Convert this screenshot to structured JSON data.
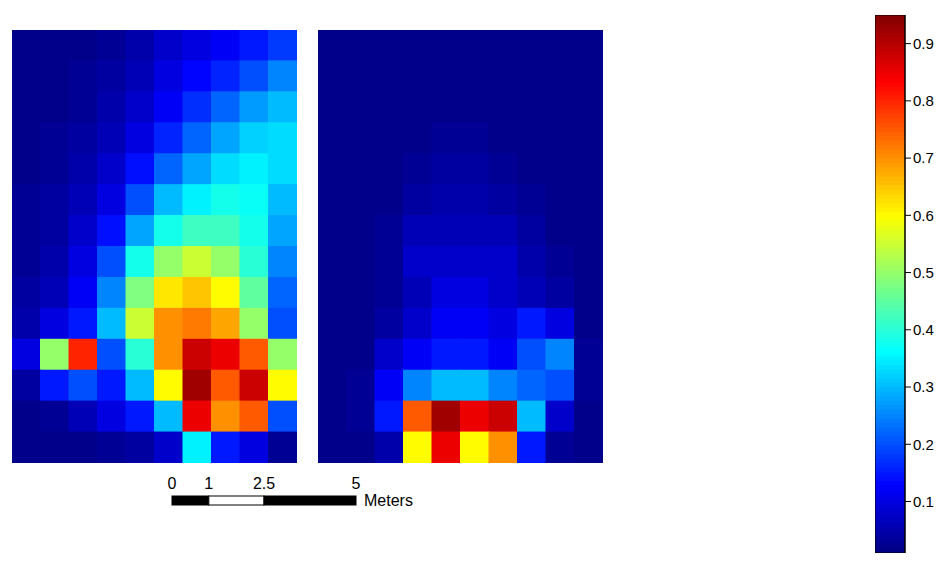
{
  "chart_data": {
    "type": "heatmap",
    "tick_labels": false,
    "panels": [
      {
        "cells": [
          [
            0.02,
            0.02,
            0.02,
            0.03,
            0.05,
            0.08,
            0.1,
            0.12,
            0.15,
            0.18
          ],
          [
            0.02,
            0.02,
            0.03,
            0.04,
            0.06,
            0.1,
            0.13,
            0.16,
            0.2,
            0.25
          ],
          [
            0.02,
            0.02,
            0.03,
            0.05,
            0.08,
            0.12,
            0.17,
            0.22,
            0.27,
            0.3
          ],
          [
            0.02,
            0.03,
            0.04,
            0.06,
            0.1,
            0.16,
            0.22,
            0.28,
            0.32,
            0.33
          ],
          [
            0.02,
            0.03,
            0.05,
            0.08,
            0.14,
            0.22,
            0.28,
            0.33,
            0.35,
            0.33
          ],
          [
            0.03,
            0.04,
            0.06,
            0.1,
            0.2,
            0.3,
            0.35,
            0.38,
            0.37,
            0.3
          ],
          [
            0.03,
            0.04,
            0.08,
            0.14,
            0.28,
            0.38,
            0.42,
            0.42,
            0.38,
            0.28
          ],
          [
            0.03,
            0.05,
            0.1,
            0.2,
            0.38,
            0.5,
            0.55,
            0.5,
            0.4,
            0.25
          ],
          [
            0.04,
            0.06,
            0.12,
            0.25,
            0.48,
            0.62,
            0.65,
            0.6,
            0.45,
            0.22
          ],
          [
            0.05,
            0.1,
            0.15,
            0.3,
            0.55,
            0.7,
            0.72,
            0.68,
            0.5,
            0.2
          ],
          [
            0.1,
            0.5,
            0.8,
            0.2,
            0.4,
            0.7,
            0.88,
            0.85,
            0.75,
            0.5
          ],
          [
            0.04,
            0.15,
            0.2,
            0.15,
            0.3,
            0.6,
            0.92,
            0.75,
            0.88,
            0.6
          ],
          [
            0.02,
            0.03,
            0.06,
            0.1,
            0.15,
            0.3,
            0.85,
            0.7,
            0.75,
            0.2
          ],
          [
            0.02,
            0.02,
            0.02,
            0.03,
            0.04,
            0.08,
            0.35,
            0.15,
            0.1,
            0.03
          ]
        ]
      },
      {
        "cells": [
          [
            0.02,
            0.02,
            0.02,
            0.02,
            0.02,
            0.02,
            0.02,
            0.02,
            0.02,
            0.02
          ],
          [
            0.02,
            0.02,
            0.02,
            0.02,
            0.02,
            0.02,
            0.02,
            0.02,
            0.02,
            0.02
          ],
          [
            0.02,
            0.02,
            0.02,
            0.02,
            0.02,
            0.02,
            0.02,
            0.02,
            0.02,
            0.02
          ],
          [
            0.02,
            0.02,
            0.02,
            0.02,
            0.03,
            0.03,
            0.02,
            0.02,
            0.02,
            0.02
          ],
          [
            0.02,
            0.02,
            0.02,
            0.03,
            0.04,
            0.04,
            0.03,
            0.02,
            0.02,
            0.02
          ],
          [
            0.02,
            0.02,
            0.02,
            0.04,
            0.05,
            0.05,
            0.04,
            0.03,
            0.02,
            0.02
          ],
          [
            0.02,
            0.02,
            0.03,
            0.06,
            0.06,
            0.06,
            0.06,
            0.04,
            0.02,
            0.02
          ],
          [
            0.02,
            0.02,
            0.03,
            0.08,
            0.08,
            0.08,
            0.08,
            0.05,
            0.03,
            0.02
          ],
          [
            0.02,
            0.02,
            0.03,
            0.06,
            0.1,
            0.1,
            0.08,
            0.06,
            0.04,
            0.02
          ],
          [
            0.02,
            0.02,
            0.04,
            0.08,
            0.12,
            0.12,
            0.1,
            0.15,
            0.1,
            0.02
          ],
          [
            0.02,
            0.02,
            0.08,
            0.12,
            0.15,
            0.15,
            0.12,
            0.2,
            0.25,
            0.03
          ],
          [
            0.02,
            0.03,
            0.12,
            0.25,
            0.3,
            0.3,
            0.25,
            0.22,
            0.2,
            0.03
          ],
          [
            0.02,
            0.03,
            0.15,
            0.75,
            0.92,
            0.85,
            0.88,
            0.3,
            0.08,
            0.02
          ],
          [
            0.02,
            0.02,
            0.05,
            0.6,
            0.85,
            0.6,
            0.7,
            0.15,
            0.03,
            0.02
          ]
        ]
      }
    ],
    "colorbar": {
      "range": [
        0.01,
        0.95
      ],
      "ticks": [
        0.1,
        0.2,
        0.3,
        0.4,
        0.5,
        0.6,
        0.7,
        0.8,
        0.9
      ]
    }
  },
  "scale_bar": {
    "ticks": [
      0,
      1,
      2.5,
      5
    ],
    "label": "Meters"
  }
}
